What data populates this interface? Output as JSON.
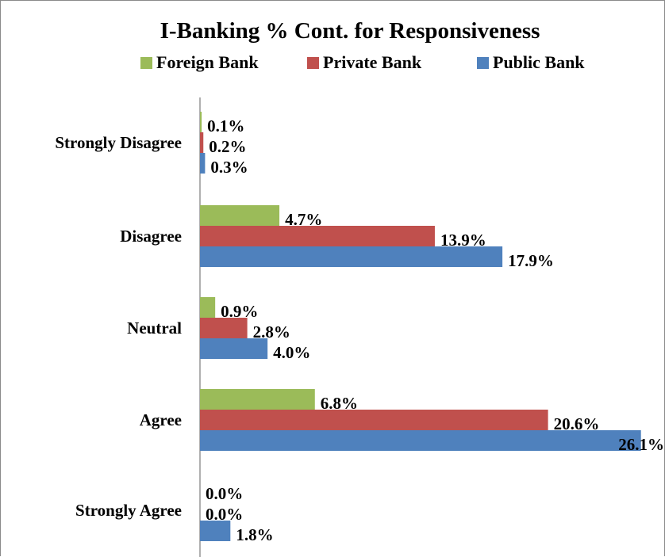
{
  "chart_data": {
    "type": "bar",
    "orientation": "horizontal",
    "title": "I-Banking % Cont. for Responsiveness",
    "categories": [
      "Strongly Disagree",
      "Disagree",
      "Neutral",
      "Agree",
      "Strongly Agree"
    ],
    "series": [
      {
        "name": "Foreign Bank",
        "color": "#9BBB59",
        "values": [
          0.1,
          4.7,
          0.9,
          6.8,
          0.0
        ],
        "labels": [
          "0.1%",
          "4.7%",
          "0.9%",
          "6.8%",
          "0.0%"
        ]
      },
      {
        "name": "Private Bank",
        "color": "#C0504D",
        "values": [
          0.2,
          13.9,
          2.8,
          20.6,
          0.0
        ],
        "labels": [
          "0.2%",
          "13.9%",
          "2.8%",
          "20.6%",
          "0.0%"
        ]
      },
      {
        "name": "Public Bank",
        "color": "#4F81BD",
        "values": [
          0.3,
          17.9,
          4.0,
          26.1,
          1.8
        ],
        "labels": [
          "0.3%",
          "17.9%",
          "4.0%",
          "26.1%",
          "1.8%"
        ]
      }
    ],
    "legend_position": "top",
    "grid": false,
    "xlim": [
      0,
      27.1
    ]
  }
}
